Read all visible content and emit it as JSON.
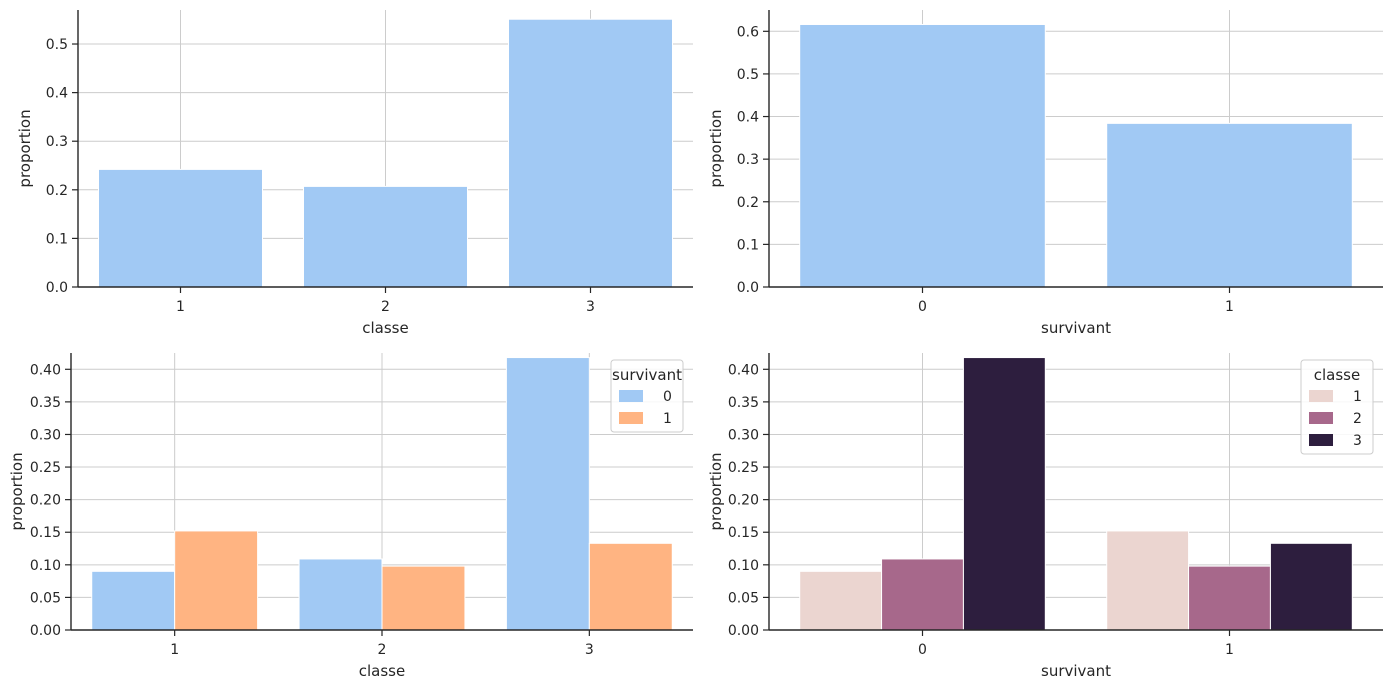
{
  "chart_data": [
    {
      "type": "bar",
      "categories": [
        "1",
        "2",
        "3"
      ],
      "series": [
        {
          "values": [
            0.242,
            0.207,
            0.551
          ],
          "color": "#a1c9f4"
        }
      ],
      "xlabel": "classe",
      "ylabel": "proportion",
      "ylim": [
        0,
        0.57
      ],
      "yticks": [
        "0.0",
        "0.1",
        "0.2",
        "0.3",
        "0.4",
        "0.5"
      ],
      "grid": true,
      "legend": null
    },
    {
      "type": "bar",
      "categories": [
        "0",
        "1"
      ],
      "series": [
        {
          "values": [
            0.616,
            0.384
          ],
          "color": "#a1c9f4"
        }
      ],
      "xlabel": "survivant",
      "ylabel": "proportion",
      "ylim": [
        0,
        0.65
      ],
      "yticks": [
        "0.0",
        "0.1",
        "0.2",
        "0.3",
        "0.4",
        "0.5",
        "0.6"
      ],
      "grid": true,
      "legend": null
    },
    {
      "type": "bar",
      "categories": [
        "1",
        "2",
        "3"
      ],
      "series": [
        {
          "name": "0",
          "values": [
            0.09,
            0.109,
            0.418
          ],
          "color": "#a1c9f4"
        },
        {
          "name": "1",
          "values": [
            0.152,
            0.098,
            0.133
          ],
          "color": "#ffb482"
        }
      ],
      "xlabel": "classe",
      "ylabel": "proportion",
      "ylim": [
        0,
        0.425
      ],
      "yticks": [
        "0.00",
        "0.05",
        "0.10",
        "0.15",
        "0.20",
        "0.25",
        "0.30",
        "0.35",
        "0.40"
      ],
      "grid": true,
      "legend": {
        "title": "survivant",
        "placement": "top-right"
      }
    },
    {
      "type": "bar",
      "categories": [
        "0",
        "1"
      ],
      "series": [
        {
          "name": "1",
          "values": [
            0.09,
            0.152
          ],
          "color": "#ebd5d0"
        },
        {
          "name": "2",
          "values": [
            0.109,
            0.098
          ],
          "color": "#a7688b"
        },
        {
          "name": "3",
          "values": [
            0.418,
            0.133
          ],
          "color": "#2d1e3e"
        }
      ],
      "xlabel": "survivant",
      "ylabel": "proportion",
      "ylim": [
        0,
        0.425
      ],
      "yticks": [
        "0.00",
        "0.05",
        "0.10",
        "0.15",
        "0.20",
        "0.25",
        "0.30",
        "0.35",
        "0.40"
      ],
      "grid": true,
      "legend": {
        "title": "classe",
        "placement": "top-right"
      }
    }
  ]
}
